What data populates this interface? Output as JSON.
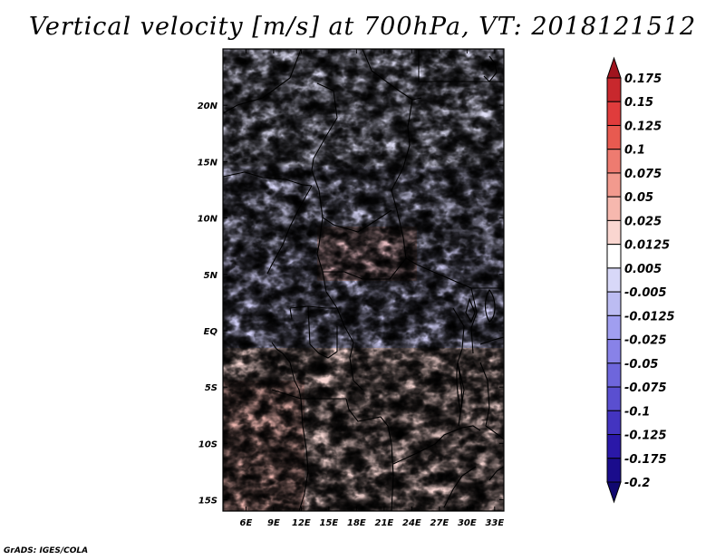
{
  "title": "Vertical velocity [m/s] at 700hPa, VT: 2018121512",
  "credit": "GrADS: IGES/COLA",
  "map": {
    "lon_range": [
      3.5,
      34
    ],
    "lat_range": [
      -16,
      25
    ],
    "x_tick_labels": [
      "6E",
      "9E",
      "12E",
      "15E",
      "18E",
      "21E",
      "24E",
      "27E",
      "30E",
      "33E"
    ],
    "x_tick_values": [
      6,
      9,
      12,
      15,
      18,
      21,
      24,
      27,
      30,
      33
    ],
    "y_tick_labels": [
      "20N",
      "15N",
      "10N",
      "5N",
      "EQ",
      "5S",
      "10S",
      "15S"
    ],
    "y_tick_values": [
      20,
      15,
      10,
      5,
      0,
      -5,
      -10,
      -15
    ]
  },
  "colorbar": {
    "levels": [
      "0.175",
      "0.15",
      "0.125",
      "0.1",
      "0.075",
      "0.05",
      "0.025",
      "0.0125",
      "0.005",
      "-0.005",
      "-0.0125",
      "-0.025",
      "-0.05",
      "-0.075",
      "-0.1",
      "-0.125",
      "-0.175",
      "-0.2"
    ],
    "colors": [
      "#a0141e",
      "#c8282d",
      "#e03c3c",
      "#e85a50",
      "#ee7b70",
      "#f29a8e",
      "#f6b8ae",
      "#fad6d0",
      "#ffffff",
      "#d8d8f8",
      "#bcbcf2",
      "#a09ef0",
      "#8882e8",
      "#6e66dc",
      "#5a4fd0",
      "#4334c0",
      "#2a18a8",
      "#1a0c8c",
      "#100870"
    ]
  }
}
